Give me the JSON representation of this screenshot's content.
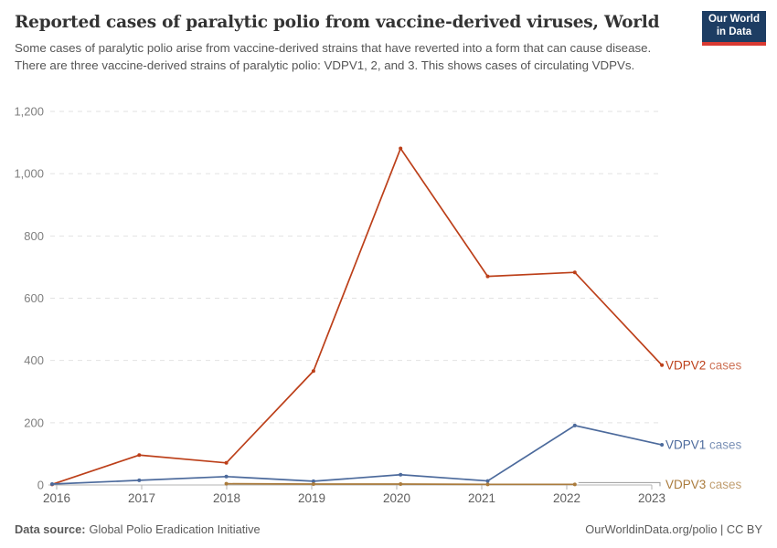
{
  "header": {
    "title": "Reported cases of paralytic polio from vaccine-derived viruses, World",
    "subtitle": "Some cases of paralytic polio arise from vaccine-derived strains that have reverted into a form that can cause disease. There are three vaccine-derived strains of paralytic polio: VDPV1, 2, and 3. This shows cases of circulating VDPVs.",
    "logo": {
      "line1": "Our World",
      "line2": "in Data",
      "bg_color": "#1d3d63",
      "accent_color": "#d93a32"
    }
  },
  "chart_data": {
    "type": "line",
    "title": "Reported cases of paralytic polio from vaccine-derived viruses, World",
    "x": [
      2016,
      2017,
      2018,
      2019,
      2020,
      2021,
      2022,
      2023
    ],
    "x_tick_labels": [
      "2016",
      "2017",
      "2018",
      "2019",
      "2020",
      "2021",
      "2022",
      "2023"
    ],
    "series": [
      {
        "name": "VDPV2 cases",
        "color": "#bc3f19",
        "values": [
          2,
          96,
          71,
          366,
          1081,
          670,
          683,
          385
        ]
      },
      {
        "name": "VDPV1 cases",
        "color": "#4c6a9c",
        "values": [
          3,
          15,
          27,
          12,
          33,
          13,
          191,
          129
        ]
      },
      {
        "name": "VDPV3 cases",
        "color": "#aa7b3c",
        "values": [
          null,
          null,
          4,
          3,
          3,
          2,
          2,
          null
        ]
      }
    ],
    "ylim": [
      0,
      1200
    ],
    "yticks": [
      0,
      200,
      400,
      600,
      800,
      1000,
      1200
    ],
    "ytick_labels": [
      "0",
      "200",
      "400",
      "600",
      "800",
      "1,000",
      "1,200"
    ],
    "grid": "horizontal-dashed",
    "legend_position": "end-of-line-labels"
  },
  "footer": {
    "source_label": "Data source:",
    "source_value": "Global Polio Eradication Initiative",
    "credit": "OurWorldinData.org/polio | CC BY"
  }
}
